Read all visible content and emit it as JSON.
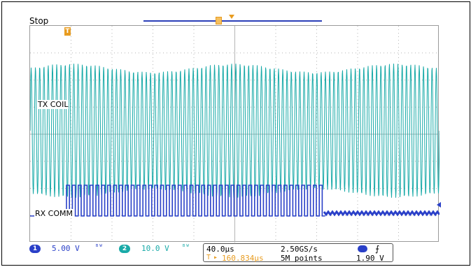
{
  "acquisition": {
    "status": "Stop"
  },
  "channels": [
    {
      "id": "1",
      "color": "#2a40c8",
      "label": "RX COMM",
      "scale": "5.00 V",
      "bw_icon": "bandwidth-icon"
    },
    {
      "id": "2",
      "color": "#19aaa8",
      "label": "TX COIL",
      "scale": "10.0 V",
      "bw_icon": "bandwidth-icon"
    }
  ],
  "horizontal": {
    "scale": "40.0µs",
    "trigger_delay": "160.834µs",
    "trigger_delay_arrow": "▸",
    "sample_rate": "2.50GS/s",
    "record_length": "5M points"
  },
  "trigger": {
    "source": "1",
    "slope_icon": "rising-edge-icon",
    "slope_glyph": "⨍",
    "level": "1.90 V",
    "marker": "T"
  },
  "colors": {
    "ch1": "#2a40c8",
    "ch2": "#19aaa8",
    "trigger": "#e89c20",
    "grid": "#b5b5b5"
  }
}
